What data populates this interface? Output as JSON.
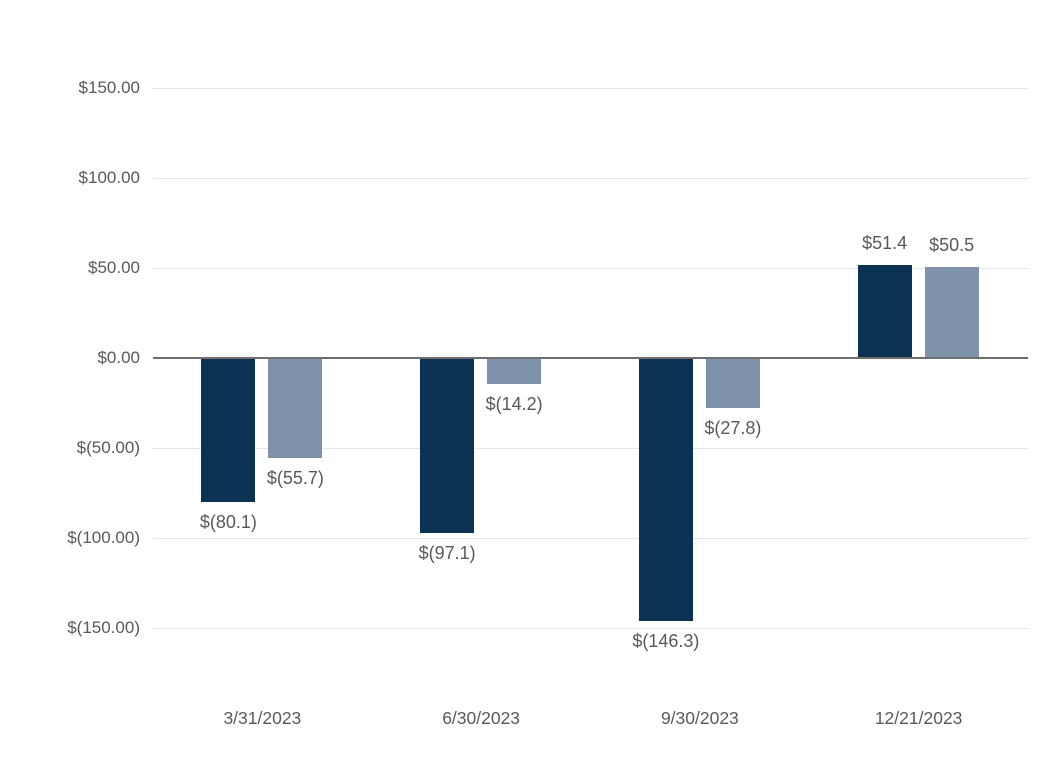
{
  "chart_data": {
    "type": "bar",
    "title": "",
    "xlabel": "",
    "ylabel": "",
    "categories": [
      "3/31/2023",
      "6/30/2023",
      "9/30/2023",
      "12/21/2023"
    ],
    "series": [
      {
        "name": "dark-navy-series",
        "color": "#0B3153",
        "values": [
          -80.1,
          -97.1,
          -146.3,
          51.4
        ],
        "labels": [
          "$(80.1)",
          "$(97.1)",
          "$(146.3)",
          "$51.4"
        ]
      },
      {
        "name": "blue-gray-series",
        "color": "#7E93AA",
        "values": [
          -55.7,
          -14.2,
          -27.8,
          50.5
        ],
        "labels": [
          "$(55.7)",
          "$(14.2)",
          "$(27.8)",
          "$50.5"
        ]
      }
    ],
    "y_axis": {
      "ylim": [
        -150,
        150
      ],
      "tick_step": 50,
      "ticks": [
        150,
        100,
        50,
        0,
        -50,
        -100,
        -150
      ],
      "tick_labels": [
        "$150.00",
        "$100.00",
        "$50.00",
        "$0.00",
        "$(50.00)",
        "$(100.00)",
        "$(150.00)"
      ]
    },
    "grid": true,
    "legend": "none"
  },
  "colors": {
    "background": "#ffffff",
    "gridline": "#e5e5e5",
    "zero_axis": "#6e6e6e",
    "label_text": "#595959"
  }
}
